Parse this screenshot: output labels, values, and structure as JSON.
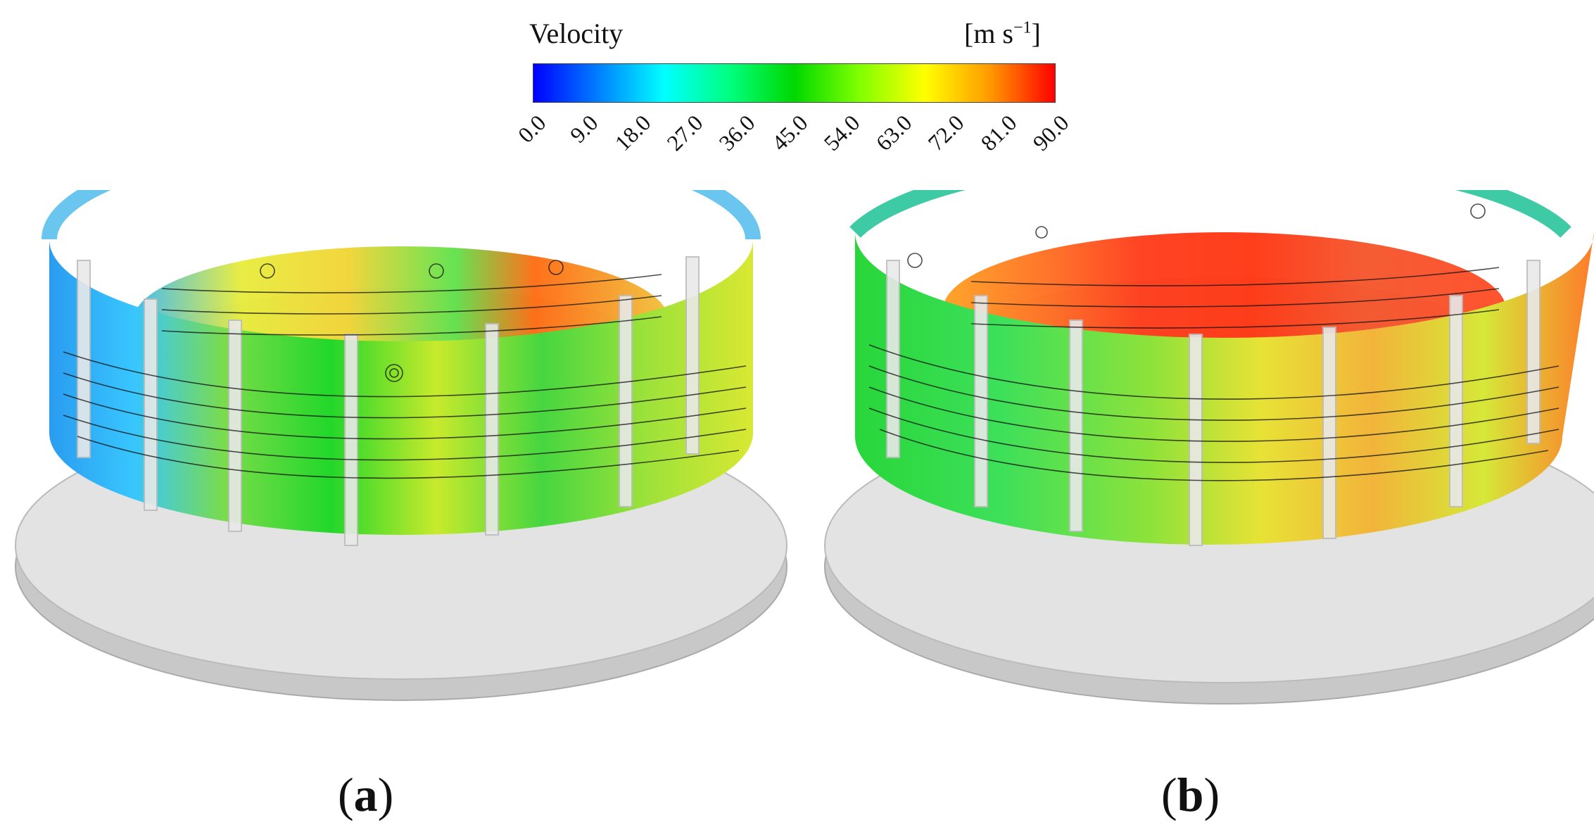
{
  "colorbar": {
    "title": "Velocity",
    "unit_base": "[m s",
    "unit_sup": "−1",
    "unit_close": "]",
    "min": 0,
    "max": 90,
    "tick_labels": [
      "0.0",
      "9.0",
      "18.0",
      "27.0",
      "36.0",
      "45.0",
      "54.0",
      "63.0",
      "72.0",
      "81.0",
      "90.0"
    ],
    "gradient_colors": [
      "#0000ff",
      "#0080ff",
      "#00ffff",
      "#00ff80",
      "#00d800",
      "#80ff00",
      "#ffff00",
      "#ff9a00",
      "#ff0000"
    ]
  },
  "panels": [
    {
      "label": "(a)",
      "letter": "a"
    },
    {
      "label": "(b)",
      "letter": "b"
    }
  ]
}
